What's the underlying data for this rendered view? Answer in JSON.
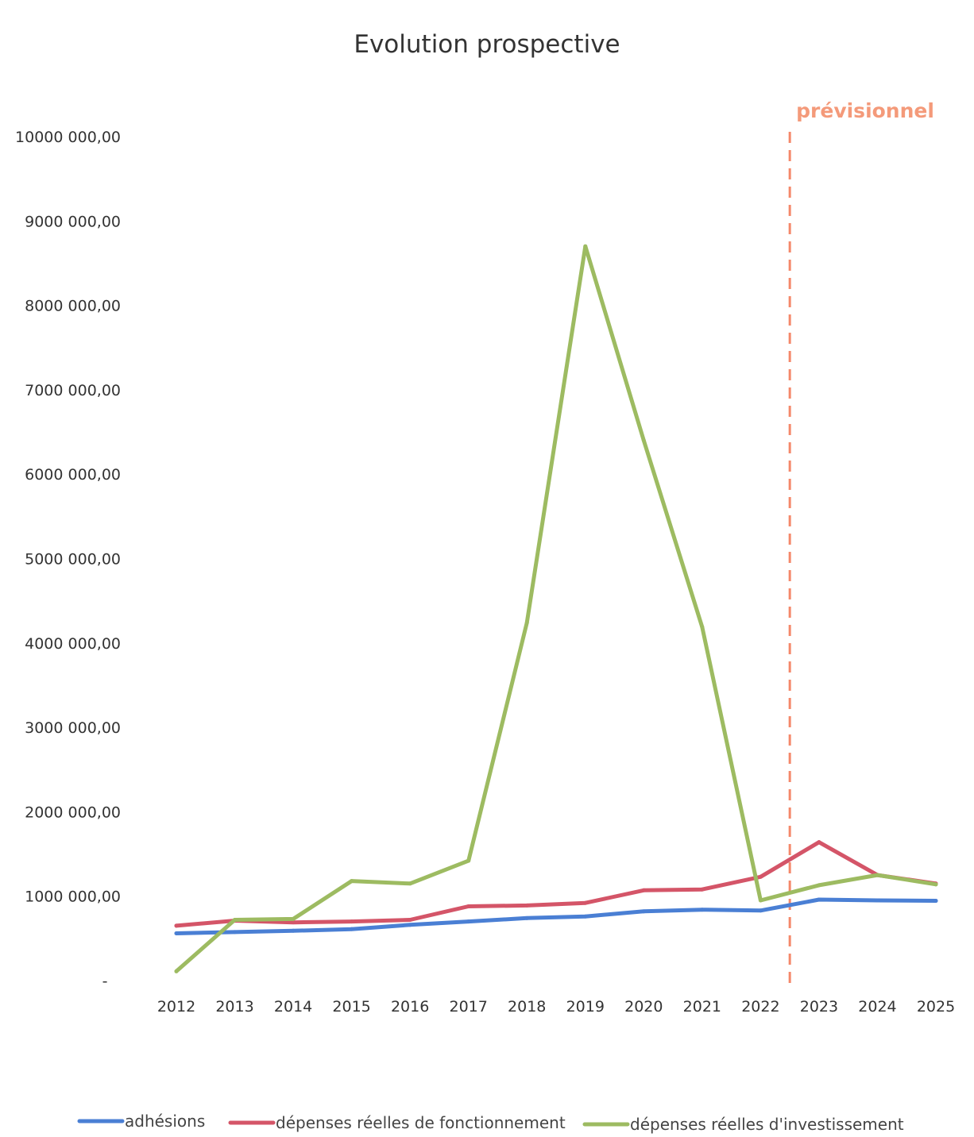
{
  "chart_data": {
    "type": "line",
    "title": "Evolution prospective",
    "xlabel": "",
    "ylabel": "",
    "ylim": [
      0,
      10000000
    ],
    "grid": false,
    "legend_position": "bottom",
    "categories": [
      "2012",
      "2013",
      "2014",
      "2015",
      "2016",
      "2017",
      "2018",
      "2019",
      "2020",
      "2021",
      "2022",
      "2023",
      "2024",
      "2025"
    ],
    "y_ticks": [
      {
        "value": 0,
        "label": "-"
      },
      {
        "value": 1000000,
        "label": "1000 000,00"
      },
      {
        "value": 2000000,
        "label": "2000 000,00"
      },
      {
        "value": 3000000,
        "label": "3000 000,00"
      },
      {
        "value": 4000000,
        "label": "4000 000,00"
      },
      {
        "value": 5000000,
        "label": "5000 000,00"
      },
      {
        "value": 6000000,
        "label": "6000 000,00"
      },
      {
        "value": 7000000,
        "label": "7000 000,00"
      },
      {
        "value": 8000000,
        "label": "8000 000,00"
      },
      {
        "value": 9000000,
        "label": "9000 000,00"
      },
      {
        "value": 10000000,
        "label": "10000 000,00"
      }
    ],
    "series": [
      {
        "name": "adhésions",
        "color": "#4a7fd4",
        "values": [
          560000,
          575000,
          590000,
          610000,
          660000,
          700000,
          740000,
          760000,
          820000,
          840000,
          830000,
          960000,
          950000,
          945000
        ]
      },
      {
        "name": "dépenses réelles de fonctionnement",
        "color": "#d45568",
        "values": [
          650000,
          710000,
          690000,
          700000,
          720000,
          880000,
          890000,
          920000,
          1070000,
          1080000,
          1230000,
          1640000,
          1250000,
          1150000
        ]
      },
      {
        "name": "dépenses réelles d'investissement",
        "color": "#9dbb61",
        "values": [
          110000,
          720000,
          730000,
          1180000,
          1150000,
          1420000,
          4240000,
          8700000,
          6400000,
          4190000,
          950000,
          1130000,
          1250000,
          1140000
        ]
      }
    ],
    "forecast": {
      "label": "prévisionnel",
      "color": "#f4886a",
      "after_category": "2022"
    }
  }
}
